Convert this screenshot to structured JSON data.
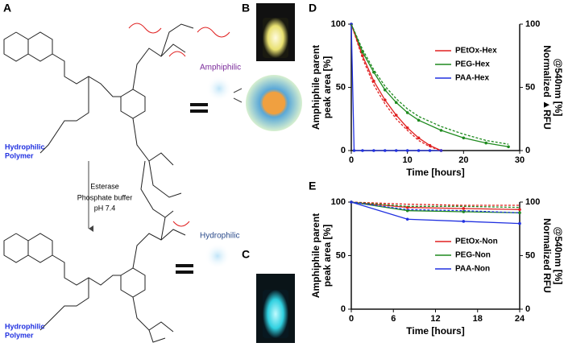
{
  "panels": {
    "a": "A",
    "b": "B",
    "c": "C",
    "d": "D",
    "e": "E"
  },
  "scheme": {
    "polymer_top": [
      "Hydrophilic",
      "Polymer"
    ],
    "polymer_bottom": [
      "Hydrophilic",
      "Polymer"
    ],
    "amphiphilic": "Amphiphilic",
    "hydrophilic": "Hydrophilic",
    "conditions": [
      "Esterase",
      "Phosphate buffer",
      "pH 7.4"
    ]
  },
  "chart_data": [
    {
      "type": "line",
      "x_label": "Time [hours]",
      "y_label": [
        "Amphiphile parent",
        "peak area [%]"
      ],
      "y2_label": [
        "Normalized ▲RFU",
        "@540nm [%]"
      ],
      "xlim": [
        0,
        30
      ],
      "xticks": [
        0,
        10,
        20,
        30
      ],
      "ylim": [
        0,
        100
      ],
      "yticks": [
        0,
        50,
        100
      ],
      "y2lim": [
        0,
        100
      ],
      "y2ticks": [
        0,
        50,
        100
      ],
      "legend": "upper right",
      "series": [
        {
          "name": "PEtOx-Hex",
          "color": "#e02020",
          "x": [
            0,
            2,
            4,
            6,
            8,
            10,
            12,
            14,
            16
          ],
          "values": [
            100,
            75,
            55,
            40,
            28,
            18,
            10,
            4,
            0
          ]
        },
        {
          "name": "PEG-Hex",
          "color": "#1e8a1e",
          "x": [
            0,
            2,
            4,
            6,
            8,
            10,
            12,
            16,
            20,
            24,
            28
          ],
          "values": [
            100,
            78,
            62,
            48,
            38,
            30,
            24,
            16,
            10,
            6,
            3
          ]
        },
        {
          "name": "PAA-Hex",
          "color": "#2030e0",
          "x": [
            0,
            0.5,
            2,
            4,
            6,
            8,
            10,
            12,
            14,
            16
          ],
          "values": [
            100,
            0,
            0,
            0,
            0,
            0,
            0,
            0,
            0,
            0
          ]
        },
        {
          "color": "#e02020",
          "axis": "y2",
          "dashed": true,
          "x": [
            0,
            2,
            4,
            6,
            8,
            10,
            12,
            14,
            16
          ],
          "values": [
            100,
            73,
            52,
            37,
            25,
            16,
            8,
            3,
            0
          ]
        },
        {
          "color": "#1e8a1e",
          "axis": "y2",
          "dashed": true,
          "x": [
            0,
            2,
            4,
            6,
            8,
            10,
            12,
            16,
            20,
            24,
            28
          ],
          "values": [
            100,
            80,
            64,
            51,
            41,
            33,
            27,
            19,
            13,
            8,
            5
          ]
        }
      ]
    },
    {
      "type": "line",
      "x_label": "Time [hours]",
      "y_label": [
        "Amphiphile parent",
        "peak area [%]"
      ],
      "y2_label": [
        "Normalized RFU",
        "@540nm [%]"
      ],
      "xlim": [
        0,
        24
      ],
      "xticks": [
        0,
        6,
        12,
        18,
        24
      ],
      "ylim": [
        0,
        100
      ],
      "yticks": [
        0,
        50,
        100
      ],
      "y2lim": [
        0,
        100
      ],
      "y2ticks": [
        0,
        50,
        100
      ],
      "legend": "center right",
      "series": [
        {
          "name": "PEtOx-Non",
          "color": "#e02020",
          "x": [
            0,
            8,
            16,
            24
          ],
          "values": [
            100,
            95,
            94,
            93
          ]
        },
        {
          "name": "PEG-Non",
          "color": "#1e8a1e",
          "x": [
            0,
            8,
            16,
            24
          ],
          "values": [
            100,
            92,
            91,
            90
          ]
        },
        {
          "name": "PAA-Non",
          "color": "#2030e0",
          "x": [
            0,
            8,
            16,
            24
          ],
          "values": [
            100,
            84,
            82,
            80
          ]
        },
        {
          "color": "#e02020",
          "axis": "y2",
          "dashed": true,
          "x": [
            0,
            8,
            16,
            24
          ],
          "values": [
            100,
            98,
            97,
            97
          ]
        },
        {
          "color": "#1e8a1e",
          "axis": "y2",
          "dashed": true,
          "x": [
            0,
            8,
            16,
            24
          ],
          "values": [
            100,
            96,
            96,
            95
          ]
        },
        {
          "color": "#2030e0",
          "axis": "y2",
          "dashed": true,
          "x": [
            0,
            8,
            16,
            24
          ],
          "values": [
            100,
            93,
            92,
            90
          ]
        }
      ]
    }
  ]
}
